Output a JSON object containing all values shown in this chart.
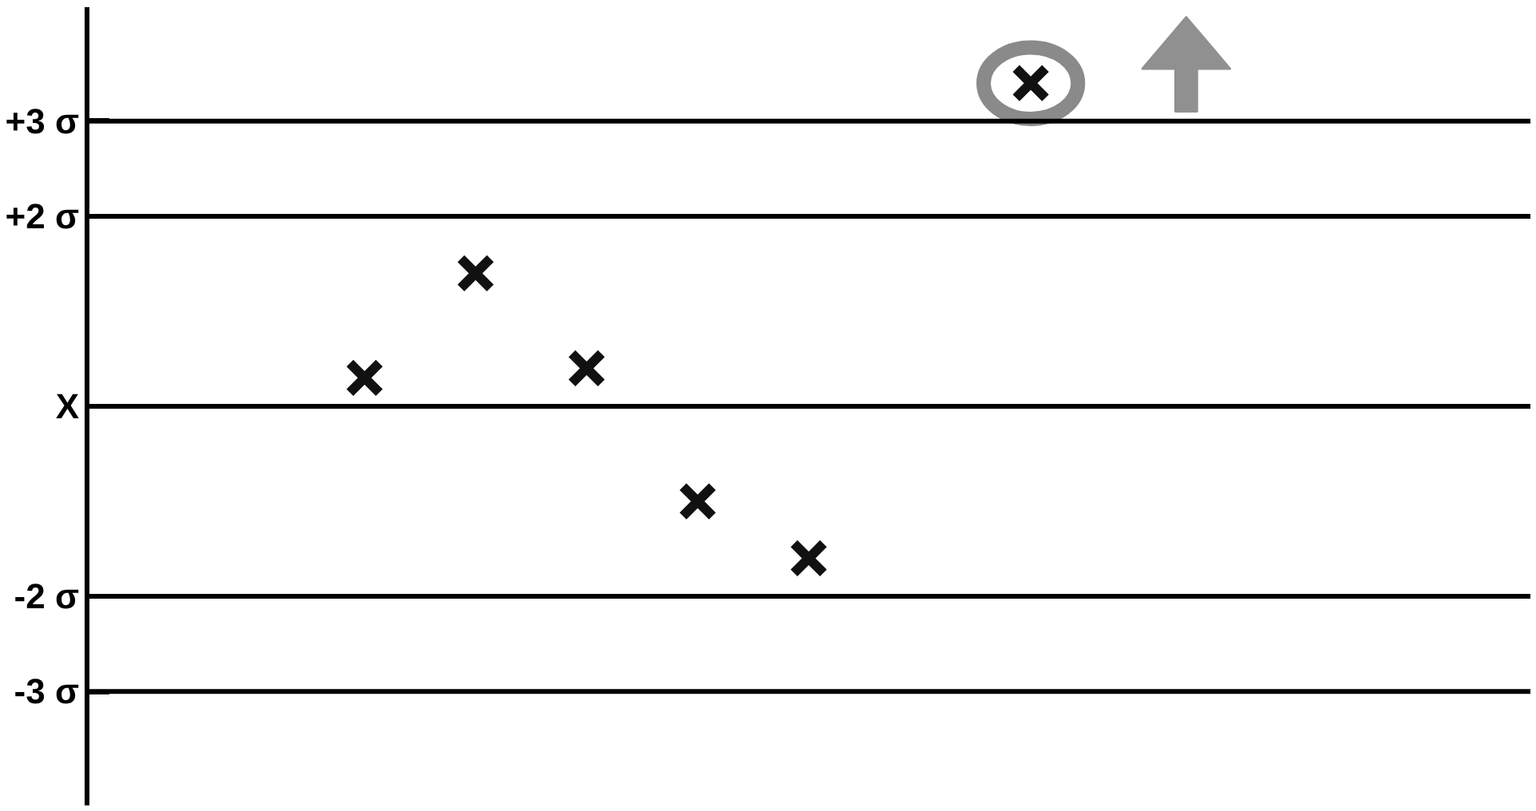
{
  "chart_data": {
    "type": "scatter",
    "categories": [
      null,
      null,
      null,
      null,
      null,
      null,
      null,
      null,
      null,
      null,
      null,
      null,
      null
    ],
    "series": [
      {
        "color": "#111111",
        "values": [
          null,
          null,
          0.3,
          1.4,
          0.4,
          -1.0,
          -1.6,
          null,
          3.4,
          null,
          null,
          null,
          null
        ]
      }
    ],
    "marker": "cross",
    "ylim": [
      -4.2,
      4.2
    ],
    "yticks": [
      {
        "value": 3,
        "label": "+3 σ"
      },
      {
        "value": 2,
        "label": "+2 σ"
      },
      {
        "value": 0,
        "label": "X"
      },
      {
        "value": -2,
        "label": "-2 σ"
      },
      {
        "value": -3,
        "label": "-3 σ"
      }
    ],
    "tick_labels": "y",
    "grid": false,
    "ref_lines": [
      {
        "axis": "y",
        "value": 3,
        "color": "#000000"
      },
      {
        "axis": "y",
        "value": 2,
        "color": "#000000"
      },
      {
        "axis": "y",
        "value": 0,
        "color": "#000000"
      },
      {
        "axis": "y",
        "value": -2,
        "color": "#000000"
      },
      {
        "axis": "y",
        "value": -3,
        "color": "#000000"
      }
    ]
  }
}
